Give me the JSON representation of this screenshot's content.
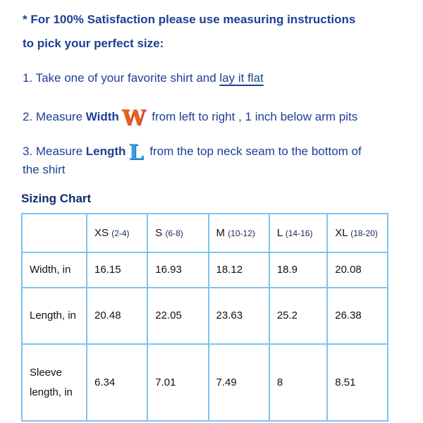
{
  "intro": {
    "line1": "* For 100% Satisfaction please use measuring instructions",
    "line2": "to pick your perfect size:"
  },
  "steps": [
    {
      "prefix": "1. Take one of your favorite shirt and ",
      "link": "lay it flat"
    },
    {
      "prefix": "2. Measure ",
      "bold": "Width",
      "icon": "W",
      "rest": " from left to right , 1 inch below arm pits"
    },
    {
      "prefix": "3. Measure ",
      "bold": "Length",
      "icon": "L",
      "rest": " from the top neck seam to the bottom of",
      "rest2": "the shirt"
    }
  ],
  "colors": {
    "text": "#1c3f95",
    "border": "#7cc4f2",
    "w_icon": "#e8621a",
    "l_icon": "#3aa0e0"
  },
  "chart_title": "Sizing Chart",
  "chart_data": {
    "type": "table",
    "title": "Sizing Chart",
    "columns": [
      {
        "size": "XS",
        "range": "(2-4)"
      },
      {
        "size": "S",
        "range": "(6-8)"
      },
      {
        "size": "M",
        "range": "(10-12)"
      },
      {
        "size": "L",
        "range": "(14-16)"
      },
      {
        "size": "XL",
        "range": "(18-20)"
      }
    ],
    "rows": [
      {
        "label": "Width, in",
        "values": [
          "16.15",
          "16.93",
          "18.12",
          "18.9",
          "20.08"
        ]
      },
      {
        "label": "Length, in",
        "values": [
          "20.48",
          "22.05",
          "23.63",
          "25.2",
          "26.38"
        ]
      },
      {
        "label": "Sleeve length, in",
        "values": [
          "6.34",
          "7.01",
          "7.49",
          "8",
          "8.51"
        ]
      }
    ]
  }
}
